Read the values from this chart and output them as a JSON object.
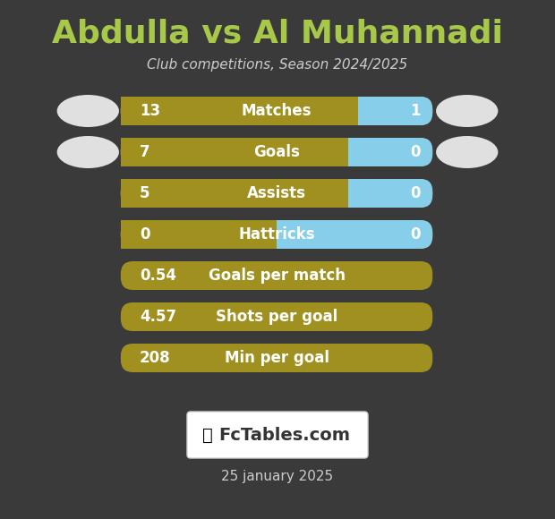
{
  "title": "Abdulla vs Al Muhannadi",
  "subtitle": "Club competitions, Season 2024/2025",
  "date": "25 january 2025",
  "background_color": "#3a3a3a",
  "title_color": "#a8c84a",
  "subtitle_color": "#cccccc",
  "date_color": "#cccccc",
  "bar_color_left": "#a09020",
  "bar_color_right": "#87ceeb",
  "text_color_white": "#ffffff",
  "rows": [
    {
      "label": "Matches",
      "left_val": "13",
      "right_val": "1",
      "has_right": true
    },
    {
      "label": "Goals",
      "left_val": "7",
      "right_val": "0",
      "has_right": true
    },
    {
      "label": "Assists",
      "left_val": "5",
      "right_val": "0",
      "has_right": true
    },
    {
      "label": "Hattricks",
      "left_val": "0",
      "right_val": "0",
      "has_right": true
    },
    {
      "label": "Goals per match",
      "left_val": "0.54",
      "right_val": null,
      "has_right": false
    },
    {
      "label": "Shots per goal",
      "left_val": "4.57",
      "right_val": null,
      "has_right": false
    },
    {
      "label": "Min per goal",
      "left_val": "208",
      "right_val": null,
      "has_right": false
    }
  ],
  "ellipse_rows": [
    0,
    1
  ],
  "logo_text": "FcTables.com",
  "figsize": [
    6.2,
    5.8
  ],
  "dpi": 100
}
